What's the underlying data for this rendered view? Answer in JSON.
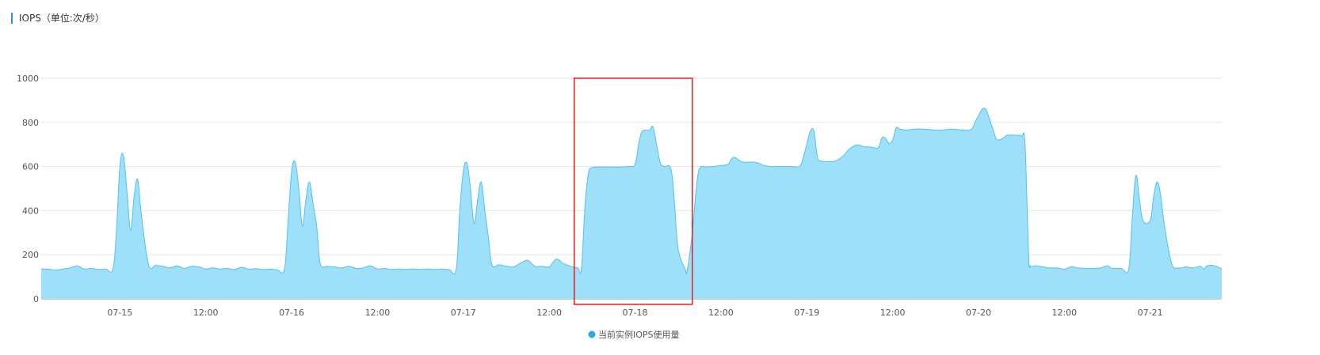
{
  "panel": {
    "title": "IOPS（单位:次/秒）"
  },
  "colors": {
    "area_fill": "#9edff9",
    "area_line": "#52c1ef",
    "grid": "#e6e6e6",
    "axis": "#cccccc",
    "highlight": "#e02020",
    "legend_dot": "#29aae1",
    "title_bar": "#2d8cf0"
  },
  "chart_data": {
    "type": "area",
    "title": "",
    "xlabel": "",
    "ylabel": "",
    "ylim": [
      0,
      1000
    ],
    "yticks": [
      0,
      200,
      400,
      600,
      800,
      1000
    ],
    "x_range_hours": [
      0,
      165
    ],
    "x_ticks": [
      {
        "hour": 11,
        "label": "07-15"
      },
      {
        "hour": 23,
        "label": "12:00"
      },
      {
        "hour": 35,
        "label": "07-16"
      },
      {
        "hour": 47,
        "label": "12:00"
      },
      {
        "hour": 59,
        "label": "07-17"
      },
      {
        "hour": 71,
        "label": "12:00"
      },
      {
        "hour": 83,
        "label": "07-18"
      },
      {
        "hour": 95,
        "label": "12:00"
      },
      {
        "hour": 107,
        "label": "07-19"
      },
      {
        "hour": 119,
        "label": "12:00"
      },
      {
        "hour": 131,
        "label": "07-20"
      },
      {
        "hour": 143,
        "label": "12:00"
      },
      {
        "hour": 155,
        "label": "07-21"
      }
    ],
    "grid": true,
    "legend_position": "bottom-center",
    "series": [
      {
        "name": "当前实例IOPS使用量",
        "points": [
          [
            0,
            135
          ],
          [
            1,
            135
          ],
          [
            2,
            130
          ],
          [
            3,
            135
          ],
          [
            4,
            140
          ],
          [
            5,
            150
          ],
          [
            6,
            135
          ],
          [
            7,
            138
          ],
          [
            8,
            133
          ],
          [
            9,
            136
          ],
          [
            10,
            133
          ],
          [
            10.5,
            300
          ],
          [
            11,
            600
          ],
          [
            11.5,
            650
          ],
          [
            12,
            480
          ],
          [
            12.5,
            310
          ],
          [
            13,
            470
          ],
          [
            13.5,
            540
          ],
          [
            14,
            380
          ],
          [
            15,
            155
          ],
          [
            16,
            152
          ],
          [
            17,
            148
          ],
          [
            18,
            140
          ],
          [
            19,
            150
          ],
          [
            20,
            138
          ],
          [
            21,
            148
          ],
          [
            22,
            145
          ],
          [
            23,
            135
          ],
          [
            24,
            140
          ],
          [
            25,
            135
          ],
          [
            26,
            138
          ],
          [
            27,
            133
          ],
          [
            28,
            143
          ],
          [
            29,
            135
          ],
          [
            30,
            137
          ],
          [
            31,
            133
          ],
          [
            32,
            135
          ],
          [
            33,
            132
          ],
          [
            34,
            135
          ],
          [
            34.5,
            350
          ],
          [
            35,
            580
          ],
          [
            35.5,
            620
          ],
          [
            36,
            500
          ],
          [
            36.5,
            330
          ],
          [
            37,
            450
          ],
          [
            37.5,
            530
          ],
          [
            38,
            430
          ],
          [
            38.5,
            330
          ],
          [
            39,
            160
          ],
          [
            40,
            148
          ],
          [
            41,
            145
          ],
          [
            42,
            140
          ],
          [
            43,
            148
          ],
          [
            44,
            138
          ],
          [
            45,
            140
          ],
          [
            46,
            150
          ],
          [
            47,
            135
          ],
          [
            48,
            138
          ],
          [
            49,
            133
          ],
          [
            50,
            136
          ],
          [
            51,
            133
          ],
          [
            52,
            136
          ],
          [
            53,
            133
          ],
          [
            54,
            136
          ],
          [
            55,
            133
          ],
          [
            56,
            135
          ],
          [
            57,
            133
          ],
          [
            58,
            135
          ],
          [
            58.5,
            400
          ],
          [
            59,
            580
          ],
          [
            59.5,
            615
          ],
          [
            60,
            500
          ],
          [
            60.5,
            340
          ],
          [
            61,
            450
          ],
          [
            61.5,
            530
          ],
          [
            62,
            400
          ],
          [
            62.5,
            280
          ],
          [
            63,
            155
          ],
          [
            64,
            155
          ],
          [
            65,
            148
          ],
          [
            66,
            145
          ],
          [
            67,
            162
          ],
          [
            68,
            175
          ],
          [
            69,
            148
          ],
          [
            70,
            148
          ],
          [
            71,
            145
          ],
          [
            72,
            180
          ],
          [
            73,
            160
          ],
          [
            74,
            148
          ],
          [
            75,
            140
          ],
          [
            75.5,
            135
          ],
          [
            76,
            420
          ],
          [
            76.5,
            570
          ],
          [
            77,
            595
          ],
          [
            78,
            598
          ],
          [
            79,
            598
          ],
          [
            80,
            598
          ],
          [
            81,
            598
          ],
          [
            82,
            600
          ],
          [
            83,
            610
          ],
          [
            83.5,
            700
          ],
          [
            84,
            760
          ],
          [
            85,
            765
          ],
          [
            85.5,
            780
          ],
          [
            86,
            700
          ],
          [
            86.5,
            620
          ],
          [
            87,
            600
          ],
          [
            88,
            590
          ],
          [
            88.5,
            440
          ],
          [
            89,
            230
          ],
          [
            90,
            135
          ],
          [
            90.3,
            130
          ],
          [
            91,
            300
          ],
          [
            91.5,
            480
          ],
          [
            92,
            590
          ],
          [
            93,
            598
          ],
          [
            94,
            600
          ],
          [
            95,
            605
          ],
          [
            96,
            610
          ],
          [
            96.5,
            635
          ],
          [
            97,
            640
          ],
          [
            98,
            620
          ],
          [
            99,
            620
          ],
          [
            100,
            618
          ],
          [
            101,
            605
          ],
          [
            102,
            600
          ],
          [
            103,
            600
          ],
          [
            104,
            600
          ],
          [
            105,
            600
          ],
          [
            106,
            600
          ],
          [
            106.5,
            640
          ],
          [
            107,
            700
          ],
          [
            107.5,
            760
          ],
          [
            108,
            760
          ],
          [
            108.5,
            640
          ],
          [
            109,
            625
          ],
          [
            110,
            622
          ],
          [
            111,
            625
          ],
          [
            112,
            645
          ],
          [
            113,
            680
          ],
          [
            114,
            698
          ],
          [
            115,
            690
          ],
          [
            116,
            688
          ],
          [
            117,
            685
          ],
          [
            117.5,
            730
          ],
          [
            118,
            728
          ],
          [
            118.5,
            705
          ],
          [
            119,
            720
          ],
          [
            119.5,
            775
          ],
          [
            120,
            770
          ],
          [
            121,
            765
          ],
          [
            122,
            770
          ],
          [
            123,
            770
          ],
          [
            124,
            768
          ],
          [
            125,
            765
          ],
          [
            126,
            765
          ],
          [
            127,
            770
          ],
          [
            128,
            768
          ],
          [
            129,
            765
          ],
          [
            130,
            768
          ],
          [
            130.5,
            800
          ],
          [
            131,
            830
          ],
          [
            131.5,
            860
          ],
          [
            132,
            860
          ],
          [
            132.5,
            820
          ],
          [
            133,
            770
          ],
          [
            133.5,
            725
          ],
          [
            134,
            722
          ],
          [
            134.5,
            730
          ],
          [
            135,
            742
          ],
          [
            136,
            742
          ],
          [
            137,
            738
          ],
          [
            137.5,
            700
          ],
          [
            138,
            200
          ],
          [
            138.3,
            150
          ],
          [
            139,
            150
          ],
          [
            140,
            145
          ],
          [
            141,
            140
          ],
          [
            142,
            140
          ],
          [
            143,
            135
          ],
          [
            144,
            145
          ],
          [
            145,
            140
          ],
          [
            146,
            138
          ],
          [
            147,
            138
          ],
          [
            148,
            140
          ],
          [
            149,
            150
          ],
          [
            149.5,
            140
          ],
          [
            150,
            138
          ],
          [
            151,
            138
          ],
          [
            152,
            135
          ],
          [
            152.5,
            370
          ],
          [
            153,
            560
          ],
          [
            153.5,
            450
          ],
          [
            154,
            355
          ],
          [
            155,
            355
          ],
          [
            155.5,
            470
          ],
          [
            156,
            530
          ],
          [
            156.5,
            460
          ],
          [
            157,
            330
          ],
          [
            158,
            160
          ],
          [
            159,
            140
          ],
          [
            160,
            145
          ],
          [
            161,
            140
          ],
          [
            162,
            148
          ],
          [
            162.5,
            135
          ],
          [
            163,
            150
          ],
          [
            164,
            150
          ],
          [
            165,
            135
          ]
        ]
      }
    ],
    "highlight_box": {
      "x_start_hour": 74.5,
      "x_end_hour": 91,
      "y_min": -25,
      "y_max": 1000
    }
  }
}
